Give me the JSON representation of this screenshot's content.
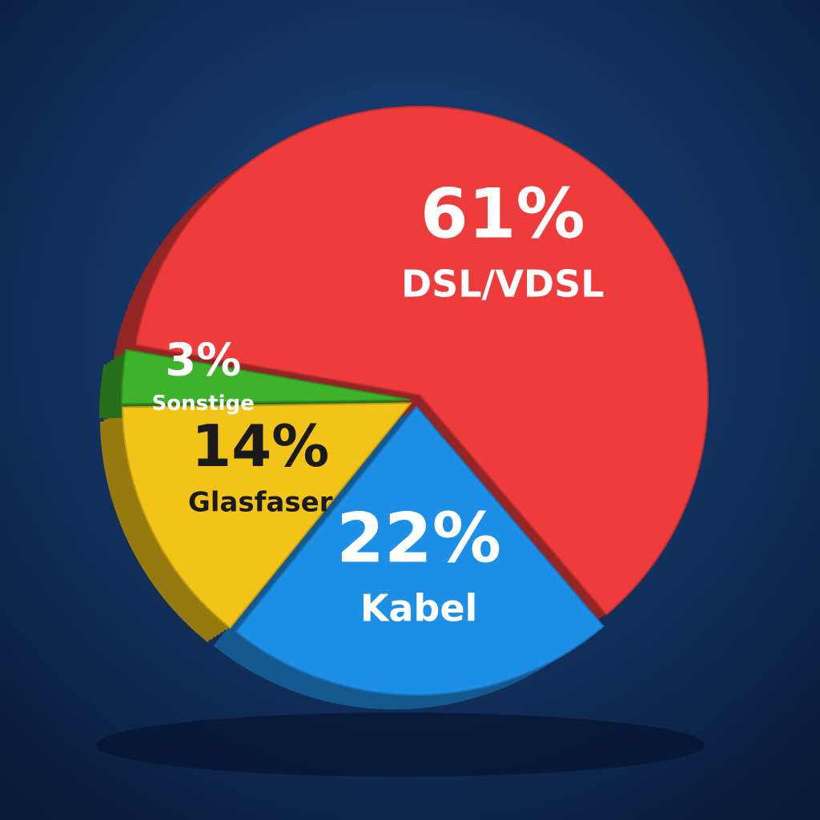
{
  "chart_data": {
    "type": "pie",
    "categories": [
      "DSL/VDSL",
      "Kabel",
      "Glasfaser",
      "Sonstige"
    ],
    "values": [
      61,
      22,
      14,
      3
    ],
    "value_labels": [
      "61%",
      "22%",
      "14%",
      "3%"
    ],
    "colors": [
      "#ee3b3b",
      "#1e8fe6",
      "#f2c418",
      "#3db22a"
    ]
  }
}
